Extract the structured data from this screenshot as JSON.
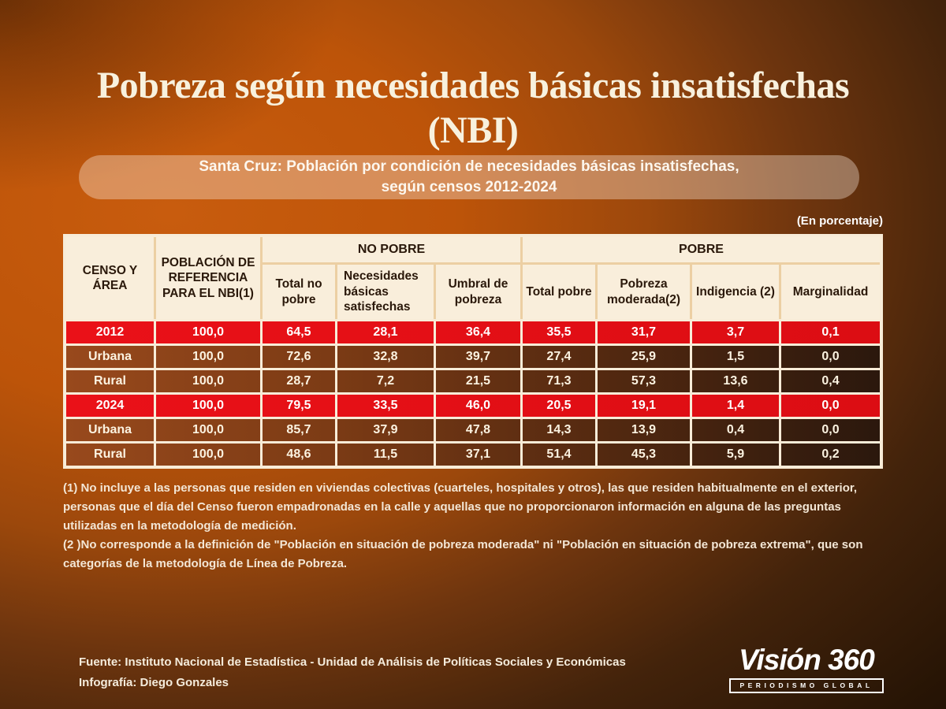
{
  "page": {
    "title_line1": "Pobreza según necesidades básicas insatisfechas",
    "title_line2": "(NBI)",
    "subtitle_line1": "Santa Cruz: Población por condición de necesidades básicas insatisfechas,",
    "subtitle_line2": "según censos 2012-2024",
    "unit_note": "(En porcentaje)"
  },
  "table": {
    "corner_header": "CENSO Y ÁREA",
    "reference_header": "POBLACIÓN DE REFERENCIA PARA EL NBI(1)",
    "group_no_pobre": "NO POBRE",
    "group_pobre": "POBRE",
    "subheaders": [
      "Total no pobre",
      "Necesidades básicas satisfechas",
      "Umbral de pobreza",
      "Total pobre",
      "Pobreza moderada(2)",
      "Indigencia (2)",
      "Marginalidad"
    ],
    "rows": [
      {
        "label": "2012",
        "style": "red",
        "values": [
          "100,0",
          "64,5",
          "28,1",
          "36,4",
          "35,5",
          "31,7",
          "3,7",
          "0,1"
        ]
      },
      {
        "label": "Urbana",
        "style": "brown",
        "values": [
          "100,0",
          "72,6",
          "32,8",
          "39,7",
          "27,4",
          "25,9",
          "1,5",
          "0,0"
        ]
      },
      {
        "label": "Rural",
        "style": "brown",
        "values": [
          "100,0",
          "28,7",
          "7,2",
          "21,5",
          "71,3",
          "57,3",
          "13,6",
          "0,4"
        ]
      },
      {
        "label": "2024",
        "style": "red",
        "values": [
          "100,0",
          "79,5",
          "33,5",
          "46,0",
          "20,5",
          "19,1",
          "1,4",
          "0,0"
        ]
      },
      {
        "label": "Urbana",
        "style": "brown",
        "values": [
          "100,0",
          "85,7",
          "37,9",
          "47,8",
          "14,3",
          "13,9",
          "0,4",
          "0,0"
        ]
      },
      {
        "label": "Rural",
        "style": "brown",
        "values": [
          "100,0",
          "48,6",
          "11,5",
          "37,1",
          "51,4",
          "45,3",
          "5,9",
          "0,2"
        ]
      }
    ]
  },
  "chart_data": {
    "type": "table",
    "title": "Santa Cruz: Población por condición de necesidades básicas insatisfechas, según censos 2012-2024",
    "unit": "En porcentaje",
    "columns": [
      "CENSO Y ÁREA",
      "POBLACIÓN DE REFERENCIA PARA EL NBI(1)",
      "Total no pobre",
      "Necesidades básicas satisfechas",
      "Umbral de pobreza",
      "Total pobre",
      "Pobreza moderada(2)",
      "Indigencia (2)",
      "Marginalidad"
    ],
    "column_groups": [
      {
        "label": "NO POBRE",
        "columns": [
          "Total no pobre",
          "Necesidades básicas satisfechas",
          "Umbral de pobreza"
        ]
      },
      {
        "label": "POBRE",
        "columns": [
          "Total pobre",
          "Pobreza moderada(2)",
          "Indigencia (2)",
          "Marginalidad"
        ]
      }
    ],
    "rows": [
      {
        "censo_y_area": "2012",
        "poblacion_referencia": 100.0,
        "total_no_pobre": 64.5,
        "necesidades_basicas_satisfechas": 28.1,
        "umbral_de_pobreza": 36.4,
        "total_pobre": 35.5,
        "pobreza_moderada": 31.7,
        "indigencia": 3.7,
        "marginalidad": 0.1
      },
      {
        "censo_y_area": "Urbana",
        "poblacion_referencia": 100.0,
        "total_no_pobre": 72.6,
        "necesidades_basicas_satisfechas": 32.8,
        "umbral_de_pobreza": 39.7,
        "total_pobre": 27.4,
        "pobreza_moderada": 25.9,
        "indigencia": 1.5,
        "marginalidad": 0.0
      },
      {
        "censo_y_area": "Rural",
        "poblacion_referencia": 100.0,
        "total_no_pobre": 28.7,
        "necesidades_basicas_satisfechas": 7.2,
        "umbral_de_pobreza": 21.5,
        "total_pobre": 71.3,
        "pobreza_moderada": 57.3,
        "indigencia": 13.6,
        "marginalidad": 0.4
      },
      {
        "censo_y_area": "2024",
        "poblacion_referencia": 100.0,
        "total_no_pobre": 79.5,
        "necesidades_basicas_satisfechas": 33.5,
        "umbral_de_pobreza": 46.0,
        "total_pobre": 20.5,
        "pobreza_moderada": 19.1,
        "indigencia": 1.4,
        "marginalidad": 0.0
      },
      {
        "censo_y_area": "Urbana",
        "poblacion_referencia": 100.0,
        "total_no_pobre": 85.7,
        "necesidades_basicas_satisfechas": 37.9,
        "umbral_de_pobreza": 47.8,
        "total_pobre": 14.3,
        "pobreza_moderada": 13.9,
        "indigencia": 0.4,
        "marginalidad": 0.0
      },
      {
        "censo_y_area": "Rural",
        "poblacion_referencia": 100.0,
        "total_no_pobre": 48.6,
        "necesidades_basicas_satisfechas": 11.5,
        "umbral_de_pobreza": 37.1,
        "total_pobre": 51.4,
        "pobreza_moderada": 45.3,
        "indigencia": 5.9,
        "marginalidad": 0.2
      }
    ]
  },
  "footnotes": {
    "note1": "(1) No incluye a las personas que residen en viviendas colectivas (cuarteles, hospitales y otros), las que residen habitualmente en el exterior, personas que el día del Censo fueron empadronadas en la calle y aquellas que no proporcionaron información en alguna de las preguntas utilizadas en la metodología de medición.",
    "note2": "(2 )No corresponde a la definición de \"Población en situación de pobreza moderada\" ni \"Población en situación de pobreza extrema\", que son categorías de la metodología de Línea de Pobreza."
  },
  "source": {
    "line1": "Fuente: Instituto Nacional de Estadística - Unidad de Análisis de Políticas Sociales y Económicas",
    "line2": "Infografía: Diego Gonzales"
  },
  "logo": {
    "wordmark": "Visión 360",
    "tagline": "PERIODISMO GLOBAL"
  },
  "colors": {
    "background_orange": "#c85c0e",
    "header_cream": "#f9eedb",
    "header_separator_tan": "#eccfa3",
    "row_red": "#e4111a",
    "row_brown_left": "#98491c",
    "row_brown_right": "#2b180d",
    "text_cream": "#f8f1de"
  }
}
